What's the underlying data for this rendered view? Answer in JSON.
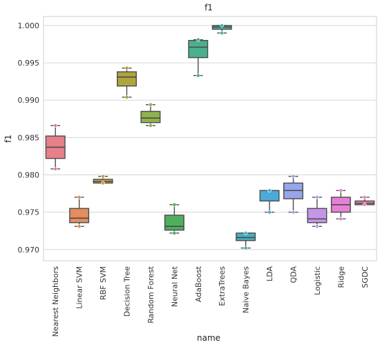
{
  "chart_data": {
    "type": "box",
    "title": "f1",
    "xlabel": "name",
    "ylabel": "f1",
    "ylim": [
      0.9685,
      1.0012
    ],
    "yticks": [
      "0.970",
      "0.975",
      "0.980",
      "0.985",
      "0.990",
      "0.995",
      "1.000"
    ],
    "grid": true,
    "categories": [
      {
        "name": "Nearest Neighbors",
        "color": "#E8808A",
        "whisker_low": 0.9808,
        "q1": 0.9822,
        "median": 0.9837,
        "q3": 0.9852,
        "whisker_high": 0.9866,
        "points": [
          0.9808,
          0.9866
        ]
      },
      {
        "name": "Linear SVM",
        "color": "#E38E5C",
        "whisker_low": 0.9731,
        "q1": 0.9736,
        "median": 0.9742,
        "q3": 0.9755,
        "whisker_high": 0.977,
        "points": [
          0.9731,
          0.977
        ]
      },
      {
        "name": "RBF SVM",
        "color": "#C9A24A",
        "whisker_low": 0.9789,
        "q1": 0.9789,
        "median": 0.9791,
        "q3": 0.9794,
        "whisker_high": 0.9798,
        "points": [
          0.9789,
          0.9798
        ]
      },
      {
        "name": "Decision Tree",
        "color": "#AEA53E",
        "whisker_low": 0.9904,
        "q1": 0.9919,
        "median": 0.9931,
        "q3": 0.9938,
        "whisker_high": 0.9943,
        "points": [
          0.9904,
          0.9943
        ]
      },
      {
        "name": "Random Forest",
        "color": "#8FB24A",
        "whisker_low": 0.9866,
        "q1": 0.987,
        "median": 0.9876,
        "q3": 0.9885,
        "whisker_high": 0.9894,
        "points": [
          0.9866,
          0.9894
        ]
      },
      {
        "name": "Neural Net",
        "color": "#4FAF5E",
        "whisker_low": 0.9722,
        "q1": 0.9726,
        "median": 0.9731,
        "q3": 0.9746,
        "whisker_high": 0.976,
        "points": [
          0.9722,
          0.976
        ]
      },
      {
        "name": "AdaBoost",
        "color": "#4AB08C",
        "whisker_low": 0.9933,
        "q1": 0.9957,
        "median": 0.9971,
        "q3": 0.998,
        "whisker_high": 0.9981,
        "points": [
          0.9933,
          0.9981
        ]
      },
      {
        "name": "ExtraTrees",
        "color": "#4BB3A8",
        "whisker_low": 0.999,
        "q1": 0.9995,
        "median": 0.9998,
        "q3": 1.0,
        "whisker_high": 1.0,
        "points": [
          0.999,
          1.0
        ]
      },
      {
        "name": "Naive Bayes",
        "color": "#4BAEC0",
        "whisker_low": 0.9702,
        "q1": 0.9712,
        "median": 0.9716,
        "q3": 0.9722,
        "whisker_high": 0.9722,
        "points": [
          0.9702,
          0.9722
        ]
      },
      {
        "name": "LDA",
        "color": "#4CA9D8",
        "whisker_low": 0.975,
        "q1": 0.9765,
        "median": 0.9779,
        "q3": 0.9779,
        "whisker_high": 0.9779,
        "points": [
          0.975,
          0.9779
        ]
      },
      {
        "name": "QDA",
        "color": "#97A6EA",
        "whisker_low": 0.975,
        "q1": 0.9768,
        "median": 0.9779,
        "q3": 0.9789,
        "whisker_high": 0.9798,
        "points": [
          0.975,
          0.9798
        ]
      },
      {
        "name": "Logistic",
        "color": "#C596E8",
        "whisker_low": 0.9731,
        "q1": 0.9736,
        "median": 0.9741,
        "q3": 0.9755,
        "whisker_high": 0.977,
        "points": [
          0.9731,
          0.977
        ]
      },
      {
        "name": "Ridge",
        "color": "#E67FD6",
        "whisker_low": 0.9741,
        "q1": 0.975,
        "median": 0.976,
        "q3": 0.977,
        "whisker_high": 0.9779,
        "points": [
          0.9741,
          0.9779
        ]
      },
      {
        "name": "SGDC",
        "color": "#EB86B4",
        "whisker_low": 0.976,
        "q1": 0.976,
        "median": 0.9762,
        "q3": 0.9765,
        "whisker_high": 0.977,
        "points": [
          0.976,
          0.977
        ]
      }
    ]
  }
}
